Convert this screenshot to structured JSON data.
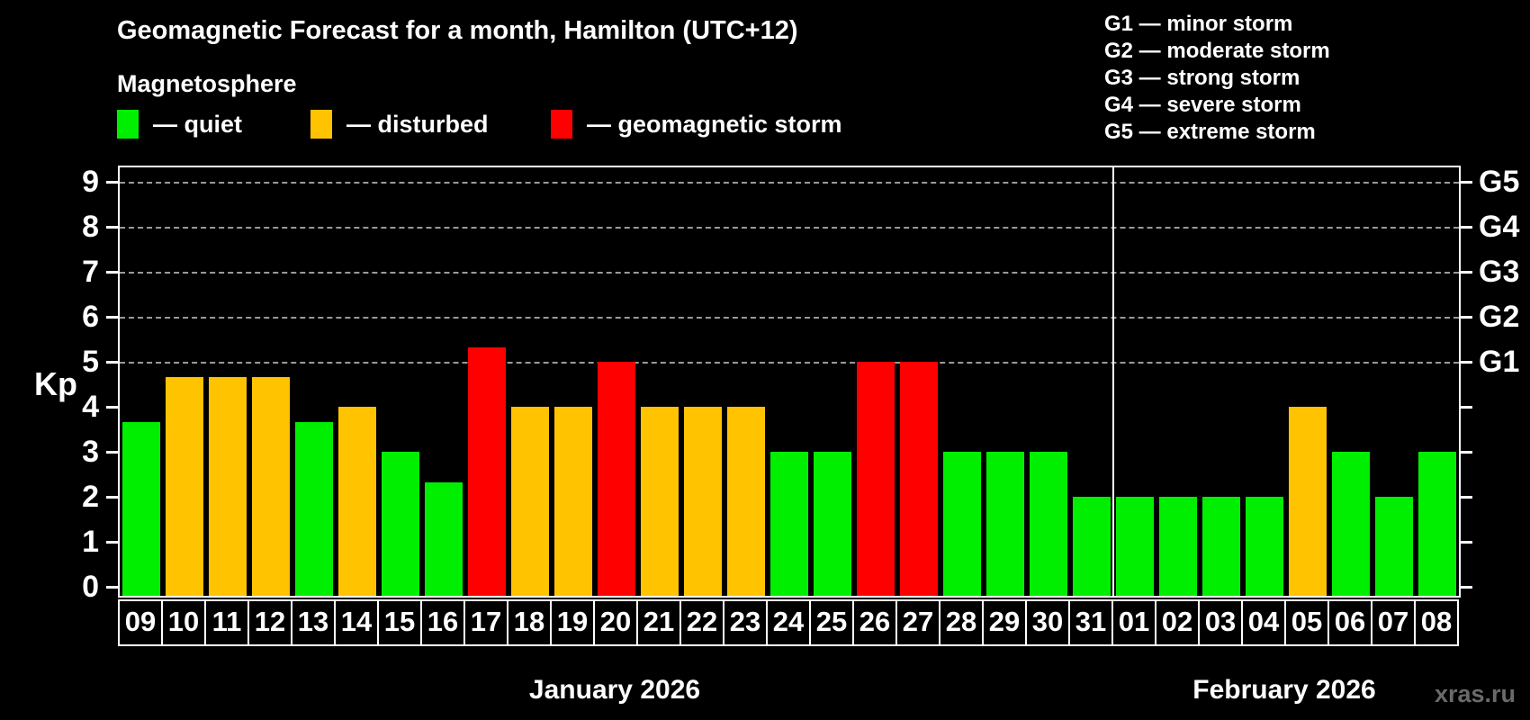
{
  "header": {
    "title": "Geomagnetic Forecast for a month, Hamilton (UTC+12)",
    "subtitle": "Magnetosphere"
  },
  "legend": {
    "items": [
      {
        "name": "quiet",
        "label": "— quiet",
        "color": "#00ef00"
      },
      {
        "name": "disturbed",
        "label": "— disturbed",
        "color": "#ffc300"
      },
      {
        "name": "storm",
        "label": "— geomagnetic storm",
        "color": "#ff0000"
      }
    ]
  },
  "g_scale_legend": [
    "G1 — minor storm",
    "G2 — moderate storm",
    "G3 — strong storm",
    "G4 — severe storm",
    "G5 — extreme storm"
  ],
  "watermark": "xras.ru",
  "chart_data": {
    "type": "bar",
    "ylabel": "Kp",
    "ylim": [
      0,
      9
    ],
    "y_ticks": [
      0,
      1,
      2,
      3,
      4,
      5,
      6,
      7,
      8,
      9
    ],
    "gridlines_kp": [
      5,
      6,
      7,
      8,
      9
    ],
    "right_axis": [
      {
        "kp": 5,
        "label": "G1"
      },
      {
        "kp": 6,
        "label": "G2"
      },
      {
        "kp": 7,
        "label": "G3"
      },
      {
        "kp": 8,
        "label": "G4"
      },
      {
        "kp": 9,
        "label": "G5"
      }
    ],
    "months": [
      {
        "label": "January 2026",
        "days": 23
      },
      {
        "label": "February 2026",
        "days": 8
      }
    ],
    "bars": [
      {
        "day": "09",
        "value": 3.67,
        "status": "quiet"
      },
      {
        "day": "10",
        "value": 4.67,
        "status": "disturbed"
      },
      {
        "day": "11",
        "value": 4.67,
        "status": "disturbed"
      },
      {
        "day": "12",
        "value": 4.67,
        "status": "disturbed"
      },
      {
        "day": "13",
        "value": 3.67,
        "status": "quiet"
      },
      {
        "day": "14",
        "value": 4.0,
        "status": "disturbed"
      },
      {
        "day": "15",
        "value": 3.0,
        "status": "quiet"
      },
      {
        "day": "16",
        "value": 2.33,
        "status": "quiet"
      },
      {
        "day": "17",
        "value": 5.33,
        "status": "storm"
      },
      {
        "day": "18",
        "value": 4.0,
        "status": "disturbed"
      },
      {
        "day": "19",
        "value": 4.0,
        "status": "disturbed"
      },
      {
        "day": "20",
        "value": 5.0,
        "status": "storm"
      },
      {
        "day": "21",
        "value": 4.0,
        "status": "disturbed"
      },
      {
        "day": "22",
        "value": 4.0,
        "status": "disturbed"
      },
      {
        "day": "23",
        "value": 4.0,
        "status": "disturbed"
      },
      {
        "day": "24",
        "value": 3.0,
        "status": "quiet"
      },
      {
        "day": "25",
        "value": 3.0,
        "status": "quiet"
      },
      {
        "day": "26",
        "value": 5.0,
        "status": "storm"
      },
      {
        "day": "27",
        "value": 5.0,
        "status": "storm"
      },
      {
        "day": "28",
        "value": 3.0,
        "status": "quiet"
      },
      {
        "day": "29",
        "value": 3.0,
        "status": "quiet"
      },
      {
        "day": "30",
        "value": 3.0,
        "status": "quiet"
      },
      {
        "day": "31",
        "value": 2.0,
        "status": "quiet"
      },
      {
        "day": "01",
        "value": 2.0,
        "status": "quiet"
      },
      {
        "day": "02",
        "value": 2.0,
        "status": "quiet"
      },
      {
        "day": "03",
        "value": 2.0,
        "status": "quiet"
      },
      {
        "day": "04",
        "value": 2.0,
        "status": "quiet"
      },
      {
        "day": "05",
        "value": 4.0,
        "status": "disturbed"
      },
      {
        "day": "06",
        "value": 3.0,
        "status": "quiet"
      },
      {
        "day": "07",
        "value": 2.0,
        "status": "quiet"
      },
      {
        "day": "08",
        "value": 3.0,
        "status": "quiet"
      }
    ]
  }
}
